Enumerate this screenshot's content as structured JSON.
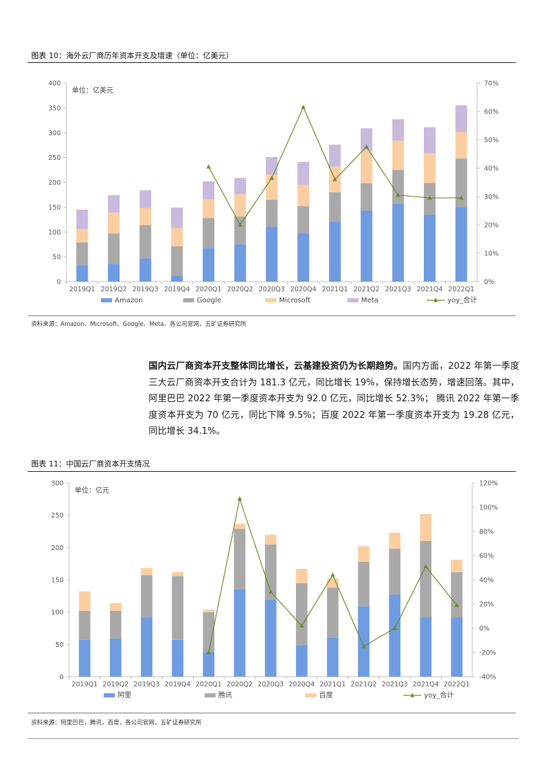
{
  "figure1": {
    "title": "图表 10：海外云厂商历年资本开支及增速（单位：亿美元）",
    "source": "资料来源：Amazon、Microsoft、Google、Meta、各公司官网，五矿证券研究所"
  },
  "figure2": {
    "title": "图表 11：中国云厂商资本开支情况",
    "source": "资料来源：阿里巴巴，腾讯，百度，各公司官网，五矿证券研究所"
  },
  "paragraph": {
    "lead": "国内云厂商资本开支整体同比增长，云基建投资仍为长期趋势。",
    "body": "国内方面，2022 年第一季度三大云厂商资本开支合计为 181.3 亿元，同比增长 19%，保持增长态势，增速回落。其中，阿里巴巴 2022 年第一季度资本开支为 92.0 亿元，同比增长 52.3%； 腾讯 2022 年第一季度资本开支为 70 亿元，同比下降 9.5%；百度 2022 年第一季度资本开支为 19.28 亿元，同比增长 34.1%。"
  },
  "colors": {
    "s1": "#6f9be0",
    "s2": "#a9a9a9",
    "s3": "#fbcea1",
    "s4": "#c9b9dc",
    "line": "#6b8a2a"
  },
  "chart_data": [
    {
      "type": "bar",
      "stacked": true,
      "unit_label": "单位：亿美元",
      "categories": [
        "2019Q1",
        "2019Q2",
        "2019Q3",
        "2019Q4",
        "2020Q1",
        "2020Q2",
        "2020Q3",
        "2020Q4",
        "2021Q1",
        "2021Q2",
        "2021Q3",
        "2021Q4",
        "2022Q1"
      ],
      "series": [
        {
          "name": "Amazon",
          "values": [
            33,
            36,
            47,
            12,
            68,
            75,
            111,
            97,
            121,
            143,
            157,
            135,
            150
          ]
        },
        {
          "name": "Google",
          "values": [
            46,
            61,
            67,
            59,
            60,
            56,
            54,
            55,
            59,
            55,
            68,
            64,
            98
          ]
        },
        {
          "name": "Microsoft",
          "values": [
            27,
            42,
            34,
            37,
            38,
            45,
            51,
            43,
            52,
            66,
            59,
            59,
            53
          ]
        },
        {
          "name": "Meta",
          "values": [
            39,
            35,
            36,
            41,
            36,
            33,
            35,
            46,
            44,
            45,
            43,
            53,
            54
          ]
        }
      ],
      "line": {
        "name": "yoy_合计",
        "values": [
          null,
          null,
          null,
          null,
          40.5,
          20,
          36.5,
          61.5,
          36,
          47.5,
          30.5,
          29.5,
          29.5
        ]
      },
      "ylim": [
        0,
        400
      ],
      "yticks": [
        "0",
        "50",
        "100",
        "150",
        "200",
        "250",
        "300",
        "350",
        "400"
      ],
      "y2lim": [
        0,
        70
      ],
      "y2ticks": [
        "0%",
        "10%",
        "20%",
        "30%",
        "40%",
        "50%",
        "60%",
        "70%"
      ]
    },
    {
      "type": "bar",
      "stacked": true,
      "unit_label": "单位：亿元",
      "categories": [
        "2019Q1",
        "2019Q2",
        "2019Q3",
        "2019Q4",
        "2020Q1",
        "2020Q2",
        "2020Q3",
        "2020Q4",
        "2021Q1",
        "2021Q2",
        "2021Q3",
        "2021Q4",
        "2022Q1"
      ],
      "series": [
        {
          "name": "阿里",
          "values": [
            57,
            59,
            92,
            57,
            38,
            135,
            119,
            49,
            60,
            109,
            127,
            92,
            92
          ]
        },
        {
          "name": "腾讯",
          "values": [
            45,
            43,
            65,
            99,
            62,
            94,
            86,
            96,
            78,
            69,
            71,
            118,
            70
          ]
        },
        {
          "name": "百度",
          "values": [
            30,
            12,
            11,
            6,
            4,
            8,
            15,
            22,
            14,
            24,
            25,
            42,
            19
          ]
        }
      ],
      "line": {
        "name": "yoy_合计",
        "values": [
          null,
          null,
          null,
          null,
          -20,
          107,
          30,
          2,
          44,
          -15,
          0,
          51,
          19
        ]
      },
      "ylim": [
        0,
        300
      ],
      "yticks": [
        "0",
        "50",
        "100",
        "150",
        "200",
        "250",
        "300"
      ],
      "y2lim": [
        -40,
        120
      ],
      "y2ticks": [
        "-40%",
        "-20%",
        "0%",
        "20%",
        "40%",
        "60%",
        "80%",
        "100%",
        "120%"
      ]
    }
  ]
}
